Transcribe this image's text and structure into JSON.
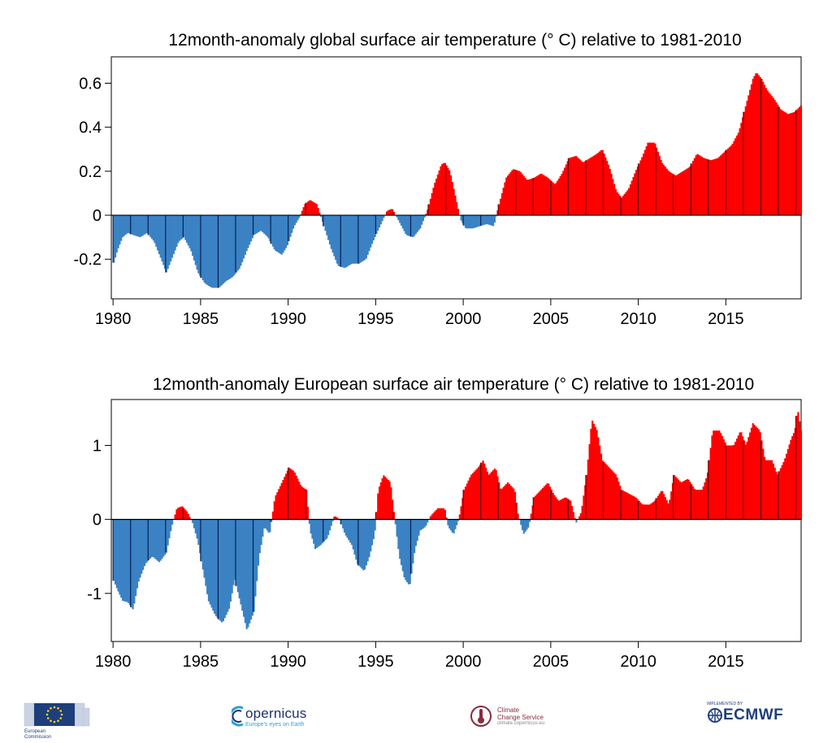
{
  "chart_data": [
    {
      "type": "bar",
      "title": "12month-anomaly global surface air temperature (° C) relative to 1981-2010",
      "xlabel": "",
      "ylabel": "",
      "xlim": [
        1979.9,
        2019.3
      ],
      "ylim": [
        -0.38,
        0.72
      ],
      "yticks": [
        -0.2,
        0,
        0.2,
        0.4,
        0.6
      ],
      "ytick_labels": [
        "-0.2",
        "0",
        "0.2",
        "0.4",
        "0.6"
      ],
      "xticks": [
        1980,
        1985,
        1990,
        1995,
        2000,
        2005,
        2010,
        2015
      ],
      "xtick_labels": [
        "1980",
        "1985",
        "1990",
        "1995",
        "2000",
        "2005",
        "2010",
        "2015"
      ],
      "positive_color": "#ff0000",
      "negative_color": "#3a82c4",
      "anchors": [
        [
          1979.95,
          -0.23
        ],
        [
          1980.2,
          -0.16
        ],
        [
          1980.5,
          -0.1
        ],
        [
          1980.8,
          -0.08
        ],
        [
          1981.1,
          -0.09
        ],
        [
          1981.5,
          -0.1
        ],
        [
          1981.9,
          -0.08
        ],
        [
          1982.3,
          -0.12
        ],
        [
          1982.7,
          -0.2
        ],
        [
          1983.0,
          -0.26
        ],
        [
          1983.3,
          -0.2
        ],
        [
          1983.7,
          -0.12
        ],
        [
          1984.0,
          -0.1
        ],
        [
          1984.4,
          -0.16
        ],
        [
          1984.8,
          -0.26
        ],
        [
          1985.2,
          -0.31
        ],
        [
          1985.6,
          -0.33
        ],
        [
          1986.0,
          -0.33
        ],
        [
          1986.4,
          -0.3
        ],
        [
          1986.8,
          -0.28
        ],
        [
          1987.2,
          -0.24
        ],
        [
          1987.6,
          -0.16
        ],
        [
          1988.0,
          -0.09
        ],
        [
          1988.4,
          -0.07
        ],
        [
          1988.8,
          -0.1
        ],
        [
          1989.2,
          -0.16
        ],
        [
          1989.6,
          -0.18
        ],
        [
          1989.9,
          -0.14
        ],
        [
          1990.3,
          -0.05
        ],
        [
          1990.6,
          -0.01
        ],
        [
          1990.9,
          0.05
        ],
        [
          1991.2,
          0.07
        ],
        [
          1991.6,
          0.05
        ],
        [
          1992.0,
          -0.05
        ],
        [
          1992.4,
          -0.15
        ],
        [
          1992.8,
          -0.23
        ],
        [
          1993.2,
          -0.24
        ],
        [
          1993.6,
          -0.22
        ],
        [
          1994.0,
          -0.22
        ],
        [
          1994.4,
          -0.2
        ],
        [
          1994.8,
          -0.12
        ],
        [
          1995.2,
          -0.05
        ],
        [
          1995.6,
          0.02
        ],
        [
          1995.9,
          0.03
        ],
        [
          1996.3,
          -0.03
        ],
        [
          1996.7,
          -0.09
        ],
        [
          1997.1,
          -0.1
        ],
        [
          1997.5,
          -0.06
        ],
        [
          1997.9,
          0.02
        ],
        [
          1998.3,
          0.14
        ],
        [
          1998.7,
          0.23
        ],
        [
          1998.9,
          0.24
        ],
        [
          1999.2,
          0.2
        ],
        [
          1999.5,
          0.09
        ],
        [
          1999.8,
          -0.02
        ],
        [
          2000.1,
          -0.06
        ],
        [
          2000.5,
          -0.06
        ],
        [
          2000.9,
          -0.05
        ],
        [
          2001.3,
          -0.04
        ],
        [
          2001.7,
          -0.05
        ],
        [
          2002.0,
          0.05
        ],
        [
          2002.4,
          0.17
        ],
        [
          2002.8,
          0.21
        ],
        [
          2003.2,
          0.2
        ],
        [
          2003.6,
          0.16
        ],
        [
          2004.0,
          0.17
        ],
        [
          2004.4,
          0.19
        ],
        [
          2004.8,
          0.17
        ],
        [
          2005.2,
          0.14
        ],
        [
          2005.6,
          0.19
        ],
        [
          2006.0,
          0.26
        ],
        [
          2006.4,
          0.27
        ],
        [
          2006.8,
          0.24
        ],
        [
          2007.2,
          0.26
        ],
        [
          2007.6,
          0.28
        ],
        [
          2007.9,
          0.3
        ],
        [
          2008.3,
          0.22
        ],
        [
          2008.7,
          0.11
        ],
        [
          2009.0,
          0.08
        ],
        [
          2009.4,
          0.12
        ],
        [
          2009.8,
          0.2
        ],
        [
          2010.2,
          0.27
        ],
        [
          2010.5,
          0.33
        ],
        [
          2010.9,
          0.33
        ],
        [
          2011.3,
          0.24
        ],
        [
          2011.7,
          0.2
        ],
        [
          2012.1,
          0.18
        ],
        [
          2012.5,
          0.2
        ],
        [
          2012.9,
          0.22
        ],
        [
          2013.3,
          0.28
        ],
        [
          2013.7,
          0.26
        ],
        [
          2014.1,
          0.25
        ],
        [
          2014.5,
          0.26
        ],
        [
          2014.9,
          0.29
        ],
        [
          2015.3,
          0.32
        ],
        [
          2015.7,
          0.38
        ],
        [
          2016.1,
          0.5
        ],
        [
          2016.5,
          0.62
        ],
        [
          2016.7,
          0.65
        ],
        [
          2017.0,
          0.62
        ],
        [
          2017.3,
          0.57
        ],
        [
          2017.7,
          0.53
        ],
        [
          2018.1,
          0.48
        ],
        [
          2018.5,
          0.46
        ],
        [
          2018.9,
          0.47
        ],
        [
          2019.25,
          0.5
        ]
      ]
    },
    {
      "type": "bar",
      "title": "12month-anomaly European surface air temperature (° C) relative to 1981-2010",
      "xlabel": "",
      "ylabel": "",
      "xlim": [
        1979.9,
        2019.3
      ],
      "ylim": [
        -1.65,
        1.62
      ],
      "yticks": [
        -1,
        0,
        1
      ],
      "ytick_labels": [
        "-1",
        "0",
        "1"
      ],
      "xticks": [
        1980,
        1985,
        1990,
        1995,
        2000,
        2005,
        2010,
        2015
      ],
      "xtick_labels": [
        "1980",
        "1985",
        "1990",
        "1995",
        "2000",
        "2005",
        "2010",
        "2015"
      ],
      "positive_color": "#ff0000",
      "negative_color": "#3a82c4",
      "anchors": [
        [
          1979.95,
          -0.8
        ],
        [
          1980.2,
          -0.95
        ],
        [
          1980.5,
          -1.1
        ],
        [
          1980.8,
          -1.12
        ],
        [
          1981.1,
          -1.22
        ],
        [
          1981.4,
          -0.85
        ],
        [
          1981.8,
          -0.6
        ],
        [
          1982.2,
          -0.5
        ],
        [
          1982.6,
          -0.58
        ],
        [
          1983.0,
          -0.45
        ],
        [
          1983.3,
          -0.1
        ],
        [
          1983.6,
          0.15
        ],
        [
          1983.9,
          0.18
        ],
        [
          1984.2,
          0.1
        ],
        [
          1984.5,
          -0.05
        ],
        [
          1984.8,
          -0.3
        ],
        [
          1985.1,
          -0.7
        ],
        [
          1985.4,
          -1.1
        ],
        [
          1985.8,
          -1.3
        ],
        [
          1986.2,
          -1.4
        ],
        [
          1986.6,
          -1.2
        ],
        [
          1986.9,
          -0.8
        ],
        [
          1987.2,
          -1.1
        ],
        [
          1987.6,
          -1.5
        ],
        [
          1988.0,
          -1.25
        ],
        [
          1988.3,
          -0.5
        ],
        [
          1988.6,
          -0.1
        ],
        [
          1988.9,
          -0.2
        ],
        [
          1989.2,
          0.3
        ],
        [
          1989.6,
          0.5
        ],
        [
          1990.0,
          0.7
        ],
        [
          1990.3,
          0.65
        ],
        [
          1990.7,
          0.45
        ],
        [
          1991.0,
          0.4
        ],
        [
          1991.2,
          -0.15
        ],
        [
          1991.5,
          -0.4
        ],
        [
          1991.8,
          -0.35
        ],
        [
          1992.2,
          -0.25
        ],
        [
          1992.6,
          0.05
        ],
        [
          1992.9,
          0.0
        ],
        [
          1993.2,
          -0.2
        ],
        [
          1993.6,
          -0.35
        ],
        [
          1993.9,
          -0.6
        ],
        [
          1994.3,
          -0.7
        ],
        [
          1994.6,
          -0.5
        ],
        [
          1994.9,
          -0.2
        ],
        [
          1995.1,
          0.4
        ],
        [
          1995.4,
          0.6
        ],
        [
          1995.8,
          0.5
        ],
        [
          1996.0,
          0.1
        ],
        [
          1996.3,
          -0.5
        ],
        [
          1996.6,
          -0.8
        ],
        [
          1996.9,
          -0.9
        ],
        [
          1997.2,
          -0.4
        ],
        [
          1997.5,
          -0.15
        ],
        [
          1997.8,
          -0.1
        ],
        [
          1998.1,
          0.05
        ],
        [
          1998.5,
          0.15
        ],
        [
          1998.9,
          0.15
        ],
        [
          1999.1,
          -0.1
        ],
        [
          1999.4,
          -0.2
        ],
        [
          1999.7,
          0.0
        ],
        [
          2000.0,
          0.4
        ],
        [
          2000.4,
          0.6
        ],
        [
          2000.8,
          0.7
        ],
        [
          2001.1,
          0.8
        ],
        [
          2001.4,
          0.6
        ],
        [
          2001.8,
          0.7
        ],
        [
          2002.1,
          0.4
        ],
        [
          2002.5,
          0.5
        ],
        [
          2002.9,
          0.4
        ],
        [
          2003.1,
          0.05
        ],
        [
          2003.4,
          -0.2
        ],
        [
          2003.7,
          -0.1
        ],
        [
          2004.0,
          0.3
        ],
        [
          2004.4,
          0.4
        ],
        [
          2004.8,
          0.5
        ],
        [
          2005.1,
          0.35
        ],
        [
          2005.4,
          0.25
        ],
        [
          2005.8,
          0.3
        ],
        [
          2006.1,
          0.25
        ],
        [
          2006.4,
          -0.05
        ],
        [
          2006.7,
          0.1
        ],
        [
          2007.0,
          0.6
        ],
        [
          2007.3,
          1.35
        ],
        [
          2007.6,
          1.2
        ],
        [
          2007.9,
          0.8
        ],
        [
          2008.3,
          0.7
        ],
        [
          2008.7,
          0.6
        ],
        [
          2009.0,
          0.4
        ],
        [
          2009.4,
          0.35
        ],
        [
          2009.8,
          0.3
        ],
        [
          2010.2,
          0.2
        ],
        [
          2010.6,
          0.2
        ],
        [
          2010.9,
          0.25
        ],
        [
          2011.3,
          0.4
        ],
        [
          2011.7,
          0.2
        ],
        [
          2012.0,
          0.6
        ],
        [
          2012.4,
          0.5
        ],
        [
          2012.8,
          0.55
        ],
        [
          2013.2,
          0.4
        ],
        [
          2013.6,
          0.4
        ],
        [
          2013.9,
          0.6
        ],
        [
          2014.2,
          1.2
        ],
        [
          2014.6,
          1.2
        ],
        [
          2015.0,
          1.0
        ],
        [
          2015.4,
          1.0
        ],
        [
          2015.8,
          1.2
        ],
        [
          2016.1,
          1.0
        ],
        [
          2016.5,
          1.3
        ],
        [
          2016.9,
          1.2
        ],
        [
          2017.2,
          0.8
        ],
        [
          2017.6,
          0.8
        ],
        [
          2017.9,
          0.6
        ],
        [
          2018.3,
          0.8
        ],
        [
          2018.7,
          1.1
        ],
        [
          2018.9,
          1.2
        ],
        [
          2019.05,
          1.5
        ],
        [
          2019.25,
          1.2
        ]
      ]
    }
  ],
  "footer": {
    "ec_line1": "European",
    "ec_line2": "Commission",
    "copernicus_name": "opernicus",
    "copernicus_tagline": "Europe's eyes on Earth",
    "c3s_line1": "Climate",
    "c3s_line2": "Change Service",
    "c3s_url": "climate.copernicus.eu",
    "ecmwf_small": "IMPLEMENTED BY",
    "ecmwf_name": "ECMWF",
    "colors": {
      "ec_blue": "#1e3f7a",
      "ec_gold": "#ffd617",
      "copernicus_navy": "#1d2f6f",
      "copernicus_cyan": "#2b9fd9",
      "c3s_maroon": "#8c2a3e",
      "ecmwf_blue": "#1e3f7a"
    }
  }
}
